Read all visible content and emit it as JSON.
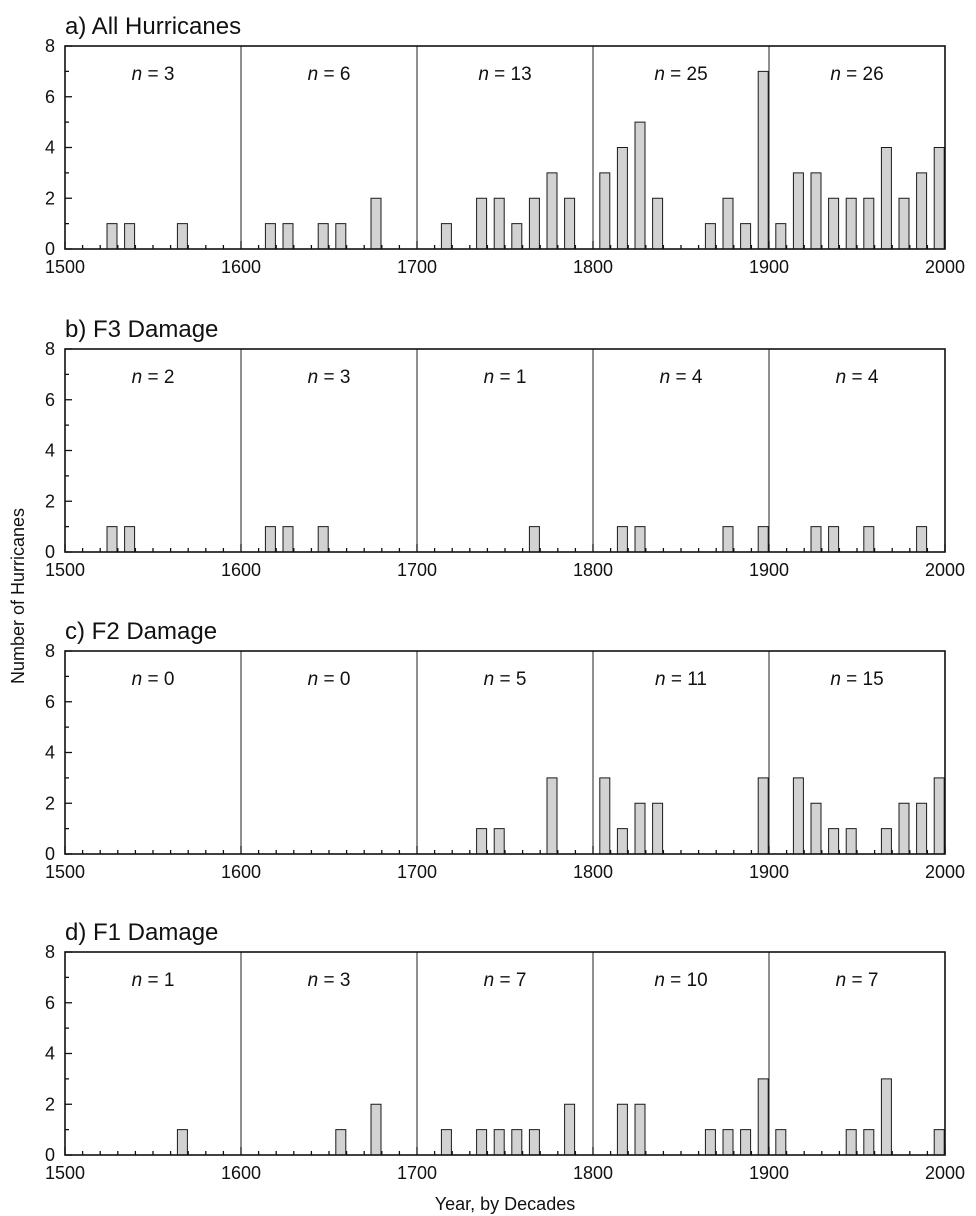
{
  "chart_data": [
    {
      "type": "bar",
      "title": "a) All Hurricanes",
      "xlim": [
        1500,
        2000
      ],
      "ylim": [
        0,
        8
      ],
      "xticks": [
        1500,
        1600,
        1700,
        1800,
        1900,
        2000
      ],
      "yticks": [
        0,
        2,
        4,
        6,
        8
      ],
      "century_counts": [
        "n = 3",
        "n = 6",
        "n = 13",
        "n = 25",
        "n = 26"
      ],
      "x": [
        1520,
        1530,
        1560,
        1610,
        1620,
        1640,
        1650,
        1670,
        1710,
        1730,
        1740,
        1750,
        1760,
        1770,
        1780,
        1800,
        1810,
        1820,
        1830,
        1860,
        1870,
        1880,
        1890,
        1900,
        1910,
        1920,
        1930,
        1940,
        1950,
        1960,
        1970,
        1980,
        1990
      ],
      "values": [
        1,
        1,
        1,
        1,
        1,
        1,
        1,
        2,
        1,
        2,
        2,
        1,
        2,
        3,
        2,
        3,
        4,
        5,
        2,
        1,
        2,
        1,
        7,
        1,
        3,
        3,
        2,
        2,
        2,
        4,
        2,
        3,
        4
      ]
    },
    {
      "type": "bar",
      "title": "b) F3 Damage",
      "xlim": [
        1500,
        2000
      ],
      "ylim": [
        0,
        8
      ],
      "xticks": [
        1500,
        1600,
        1700,
        1800,
        1900,
        2000
      ],
      "yticks": [
        0,
        2,
        4,
        6,
        8
      ],
      "century_counts": [
        "n = 2",
        "n = 3",
        "n = 1",
        "n = 4",
        "n = 4"
      ],
      "x": [
        1520,
        1530,
        1610,
        1620,
        1640,
        1760,
        1810,
        1820,
        1870,
        1890,
        1920,
        1930,
        1950,
        1980
      ],
      "values": [
        1,
        1,
        1,
        1,
        1,
        1,
        1,
        1,
        1,
        1,
        1,
        1,
        1,
        1
      ]
    },
    {
      "type": "bar",
      "title": "c) F2 Damage",
      "xlim": [
        1500,
        2000
      ],
      "ylim": [
        0,
        8
      ],
      "xticks": [
        1500,
        1600,
        1700,
        1800,
        1900,
        2000
      ],
      "yticks": [
        0,
        2,
        4,
        6,
        8
      ],
      "century_counts": [
        "n = 0",
        "n = 0",
        "n = 5",
        "n = 11",
        "n = 15"
      ],
      "x": [
        1730,
        1740,
        1770,
        1800,
        1810,
        1820,
        1830,
        1890,
        1910,
        1920,
        1930,
        1940,
        1960,
        1970,
        1980,
        1990
      ],
      "values": [
        1,
        1,
        3,
        3,
        1,
        2,
        2,
        3,
        3,
        2,
        1,
        1,
        1,
        2,
        2,
        3
      ]
    },
    {
      "type": "bar",
      "title": "d) F1 Damage",
      "xlim": [
        1500,
        2000
      ],
      "ylim": [
        0,
        8
      ],
      "xticks": [
        1500,
        1600,
        1700,
        1800,
        1900,
        2000
      ],
      "yticks": [
        0,
        2,
        4,
        6,
        8
      ],
      "century_counts": [
        "n = 1",
        "n = 3",
        "n = 7",
        "n = 10",
        "n = 7"
      ],
      "x": [
        1560,
        1650,
        1670,
        1710,
        1730,
        1740,
        1750,
        1760,
        1780,
        1810,
        1820,
        1860,
        1870,
        1880,
        1890,
        1900,
        1940,
        1950,
        1960,
        1990
      ],
      "values": [
        1,
        1,
        2,
        1,
        1,
        1,
        1,
        1,
        2,
        2,
        2,
        1,
        1,
        1,
        3,
        1,
        1,
        1,
        3,
        1
      ]
    }
  ],
  "axes": {
    "ylabel": "Number of Hurricanes",
    "xlabel": "Year, by Decades"
  },
  "colors": {
    "bar_fill": "#d2d2d2",
    "bar_stroke": "#1a1a1a",
    "frame": "#111111"
  }
}
